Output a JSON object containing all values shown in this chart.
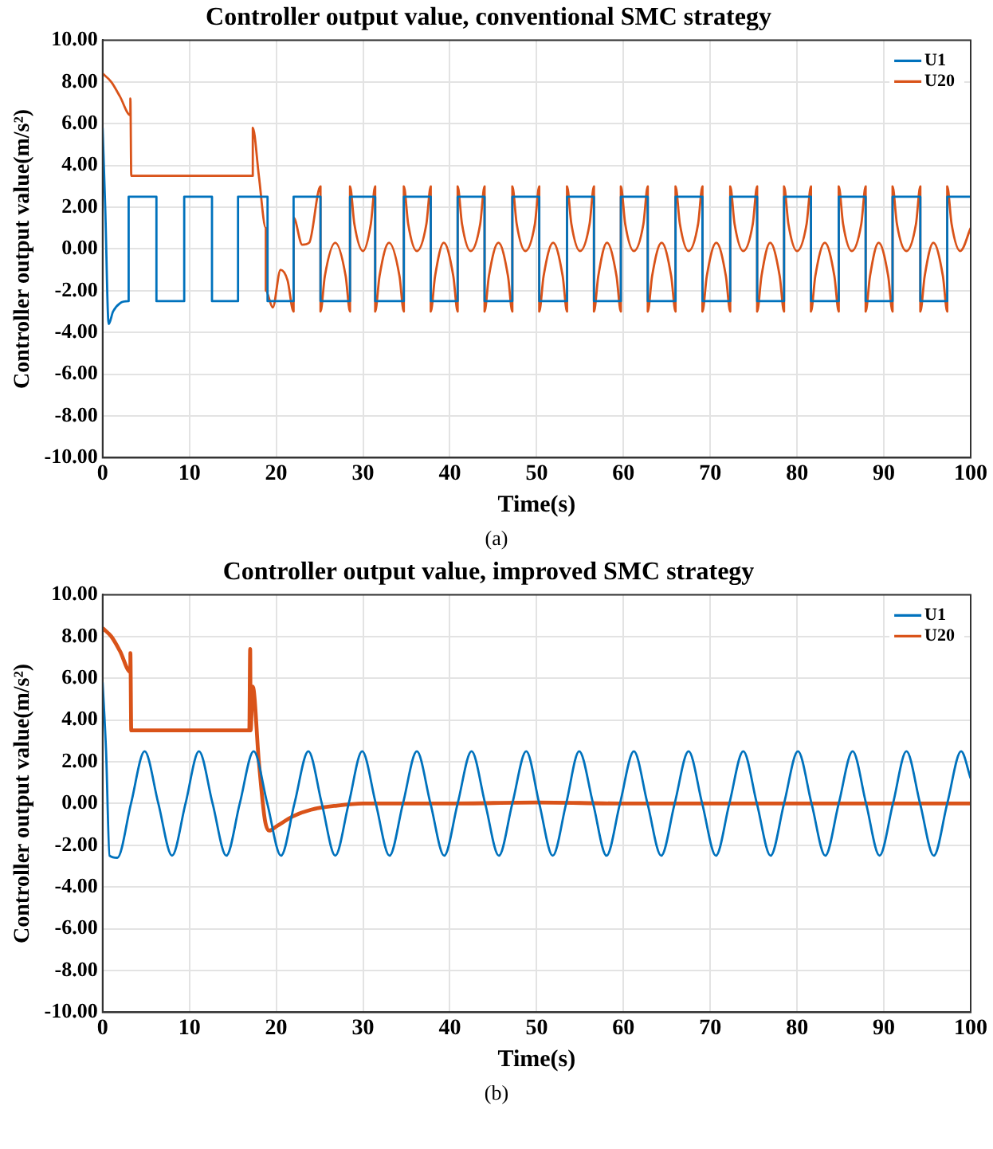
{
  "chart_data": [
    {
      "type": "line",
      "title": "Controller output value, conventional SMC strategy",
      "xlabel": "Time(s)",
      "ylabel": "Controller output value(m/s²)",
      "annotations": [
        "(a)"
      ],
      "xlim": [
        0,
        100
      ],
      "xticks": [
        0,
        10,
        20,
        30,
        40,
        50,
        60,
        70,
        80,
        90,
        100
      ],
      "ylim": [
        -10,
        10
      ],
      "yticks": [
        {
          "value": -10,
          "label": "-10.00"
        },
        {
          "value": -8,
          "label": "-8.00"
        },
        {
          "value": -6,
          "label": "-6.00"
        },
        {
          "value": -4,
          "label": "-4.00"
        },
        {
          "value": -2,
          "label": "-2.00"
        },
        {
          "value": 0,
          "label": "0.00"
        },
        {
          "value": 2,
          "label": "2.00"
        },
        {
          "value": 4,
          "label": "4.00"
        },
        {
          "value": 6,
          "label": "6.00"
        },
        {
          "value": 8,
          "label": "8.00"
        },
        {
          "value": 10,
          "label": "10.00"
        }
      ],
      "grid": true,
      "legend": "top right",
      "marker": "none",
      "line_style": "solid",
      "series": [
        {
          "name": "U1",
          "color": "#0072bd",
          "x": [
            0,
            0.3,
            0.7,
            1.2,
            2.0,
            3.0,
            3.0,
            6.2,
            6.2,
            9.4,
            9.4,
            12.6,
            12.6,
            15.6,
            15.6,
            19.0,
            19.0,
            22.0,
            22.0,
            25.1,
            25.1,
            28.5,
            28.5,
            31.4,
            31.4,
            34.7,
            34.7,
            37.8,
            37.8,
            40.9,
            40.9,
            44.0,
            44.0,
            47.2,
            47.2,
            50.3,
            50.3,
            53.5,
            53.5,
            56.6,
            56.6,
            59.7,
            59.7,
            62.8,
            62.8,
            66.0,
            66.0,
            69.1,
            69.1,
            72.3,
            72.3,
            75.4,
            75.4,
            78.5,
            78.5,
            81.6,
            81.6,
            84.8,
            84.8,
            87.9,
            87.9,
            91.0,
            91.0,
            94.2,
            94.2,
            97.3,
            97.3,
            100
          ],
          "values": [
            5.8,
            2.0,
            -3.6,
            -3.0,
            -2.6,
            -2.5,
            2.5,
            2.5,
            -2.5,
            -2.5,
            2.5,
            2.5,
            -2.5,
            -2.5,
            2.5,
            2.5,
            -2.5,
            -2.5,
            2.5,
            2.5,
            -2.5,
            -2.5,
            2.5,
            2.5,
            -2.5,
            -2.5,
            2.5,
            2.5,
            -2.5,
            -2.5,
            2.5,
            2.5,
            -2.5,
            -2.5,
            2.5,
            2.5,
            -2.5,
            -2.5,
            2.5,
            2.5,
            -2.5,
            -2.5,
            2.5,
            2.5,
            -2.5,
            -2.5,
            2.5,
            2.5,
            -2.5,
            -2.5,
            2.5,
            2.5,
            -2.5,
            -2.5,
            2.5,
            2.5,
            -2.5,
            -2.5,
            2.5,
            2.5,
            -2.5,
            -2.5,
            2.5,
            2.5,
            -2.5,
            -2.5,
            2.5,
            2.5
          ]
        },
        {
          "name": "U20",
          "color": "#d95319",
          "x": [
            0,
            1,
            2,
            3.2,
            3.2,
            3.3,
            17.3,
            17.3,
            18.0,
            18.8,
            18.8,
            19.6,
            20.5,
            21.3,
            22.0,
            22.0,
            23.0,
            23.8,
            25.1,
            25.1,
            25.6,
            26.8,
            28.0,
            28.5,
            28.5,
            29.0,
            30.0,
            30.9,
            31.4,
            31.4,
            31.9,
            33.0,
            34.2,
            34.7,
            34.7,
            35.2,
            36.2,
            37.3,
            37.8,
            37.8,
            38.3,
            39.3,
            40.4,
            40.9,
            40.9,
            41.4,
            42.4,
            43.5,
            44.0,
            44.0,
            44.5,
            45.6,
            46.7,
            47.2,
            47.2,
            47.7,
            48.7,
            49.8,
            50.3,
            50.3,
            50.8,
            51.9,
            53.0,
            53.5,
            53.5,
            54.0,
            55.0,
            56.1,
            56.6,
            56.6,
            57.1,
            58.1,
            59.2,
            59.7,
            59.7,
            60.2,
            61.2,
            62.3,
            62.8,
            62.8,
            63.3,
            64.4,
            65.5,
            66.0,
            66.0,
            66.5,
            67.5,
            68.6,
            69.1,
            69.1,
            69.6,
            70.7,
            71.8,
            72.3,
            72.3,
            72.8,
            73.8,
            74.9,
            75.4,
            75.4,
            75.9,
            76.9,
            78.0,
            78.5,
            78.5,
            79.0,
            80.0,
            81.1,
            81.6,
            81.6,
            82.1,
            83.2,
            84.3,
            84.8,
            84.8,
            85.3,
            86.3,
            87.4,
            87.9,
            87.9,
            88.4,
            89.4,
            90.5,
            91.0,
            91.0,
            91.5,
            92.6,
            93.7,
            94.2,
            94.2,
            94.7,
            95.7,
            96.8,
            97.3,
            97.3,
            97.8,
            98.8,
            100
          ],
          "values": [
            8.4,
            8.0,
            7.3,
            6.4,
            7.2,
            3.5,
            3.5,
            5.8,
            3.5,
            1.0,
            -2.0,
            -2.8,
            -1.0,
            -1.5,
            -3.0,
            1.5,
            0.2,
            0.3,
            3.0,
            -3.0,
            -1.3,
            0.3,
            -1.3,
            -3.0,
            3.0,
            1.2,
            -0.1,
            1.2,
            3.0,
            -3.0,
            -1.3,
            0.3,
            -1.3,
            -3.0,
            3.0,
            1.2,
            -0.1,
            1.2,
            3.0,
            -3.0,
            -1.3,
            0.3,
            -1.3,
            -3.0,
            3.0,
            1.2,
            -0.1,
            1.2,
            3.0,
            -3.0,
            -1.3,
            0.3,
            -1.3,
            -3.0,
            3.0,
            1.2,
            -0.1,
            1.2,
            3.0,
            -3.0,
            -1.3,
            0.3,
            -1.3,
            -3.0,
            3.0,
            1.2,
            -0.1,
            1.2,
            3.0,
            -3.0,
            -1.3,
            0.3,
            -1.3,
            -3.0,
            3.0,
            1.2,
            -0.1,
            1.2,
            3.0,
            -3.0,
            -1.3,
            0.3,
            -1.3,
            -3.0,
            3.0,
            1.2,
            -0.1,
            1.2,
            3.0,
            -3.0,
            -1.3,
            0.3,
            -1.3,
            -3.0,
            3.0,
            1.2,
            -0.1,
            1.2,
            3.0,
            -3.0,
            -1.3,
            0.3,
            -1.3,
            -3.0,
            3.0,
            1.2,
            -0.1,
            1.2,
            3.0,
            -3.0,
            -1.3,
            0.3,
            -1.3,
            -3.0,
            3.0,
            1.2,
            -0.1,
            1.2,
            3.0,
            -3.0,
            -1.3,
            0.3,
            -1.3,
            -3.0,
            3.0,
            1.2,
            -0.1,
            1.2,
            3.0,
            -3.0,
            -1.3,
            0.3,
            -1.3,
            -3.0,
            3.0,
            1.2,
            -0.1,
            1.0
          ]
        }
      ]
    },
    {
      "type": "line",
      "title": "Controller output value, improved SMC strategy",
      "xlabel": "Time(s)",
      "ylabel": "Controller output value(m/s²)",
      "annotations": [
        "(b)"
      ],
      "xlim": [
        0,
        100
      ],
      "xticks": [
        0,
        10,
        20,
        30,
        40,
        50,
        60,
        70,
        80,
        90,
        100
      ],
      "ylim": [
        -10,
        10
      ],
      "yticks": [
        {
          "value": -10,
          "label": "-10.00"
        },
        {
          "value": -8,
          "label": "-8.00"
        },
        {
          "value": -6,
          "label": "-6.00"
        },
        {
          "value": -4,
          "label": "-4.00"
        },
        {
          "value": -2,
          "label": "-2.00"
        },
        {
          "value": 0,
          "label": "0.00"
        },
        {
          "value": 2,
          "label": "2.00"
        },
        {
          "value": 4,
          "label": "4.00"
        },
        {
          "value": 6,
          "label": "6.00"
        },
        {
          "value": 8,
          "label": "8.00"
        },
        {
          "value": 10,
          "label": "10.00"
        }
      ],
      "grid": true,
      "legend": "top right",
      "marker": "none",
      "line_style": "solid",
      "series": [
        {
          "name": "U1",
          "color": "#0072bd",
          "x": [
            0,
            0.4,
            0.8,
            1.7,
            3.27,
            4.84,
            6.42,
            8.0,
            9.55,
            11.1,
            12.67,
            14.25,
            15.8,
            17.4,
            18.97,
            20.55,
            22.1,
            23.7,
            25.25,
            26.8,
            28.35,
            29.9,
            31.47,
            33.05,
            34.6,
            36.2,
            37.77,
            39.35,
            40.9,
            42.5,
            44.07,
            45.65,
            47.2,
            48.8,
            50.3,
            51.85,
            53.4,
            54.9,
            56.5,
            58.05,
            59.6,
            61.2,
            62.77,
            64.35,
            65.9,
            67.5,
            69.07,
            70.65,
            72.2,
            73.8,
            75.37,
            76.95,
            78.5,
            80.1,
            81.67,
            83.25,
            84.8,
            86.4,
            87.95,
            89.5,
            91.05,
            92.6,
            94.17,
            95.75,
            97.3,
            98.9,
            100
          ],
          "values": [
            5.8,
            2.5,
            -2.5,
            -2.6,
            0,
            2.5,
            0,
            -2.5,
            0,
            2.5,
            0,
            -2.5,
            0,
            2.5,
            0,
            -2.5,
            0,
            2.5,
            0,
            -2.5,
            0,
            2.5,
            0,
            -2.5,
            0,
            2.5,
            0,
            -2.5,
            0,
            2.5,
            0,
            -2.5,
            0,
            2.5,
            0,
            -2.5,
            0,
            2.5,
            0,
            -2.5,
            0,
            2.5,
            0,
            -2.5,
            0,
            2.5,
            0,
            -2.5,
            0,
            2.5,
            0,
            -2.5,
            0,
            2.5,
            0,
            -2.5,
            0,
            2.5,
            0,
            -2.5,
            0,
            2.5,
            0,
            -2.5,
            0,
            2.5,
            1.2
          ]
        },
        {
          "name": "U20",
          "color": "#d95319",
          "x": [
            0,
            1,
            2,
            3.2,
            3.2,
            3.3,
            16.9,
            17.0,
            17.05,
            17.3,
            18.0,
            18.7,
            19.2,
            20.0,
            22.0,
            24.0,
            27.0,
            30.0,
            40,
            50,
            60,
            70,
            80,
            90,
            100
          ],
          "values": [
            8.4,
            8.0,
            7.3,
            6.3,
            7.2,
            3.5,
            3.5,
            7.4,
            3.5,
            5.6,
            2.0,
            -0.8,
            -1.3,
            -1.1,
            -0.6,
            -0.3,
            -0.1,
            0.0,
            0.0,
            0.05,
            0.0,
            0.0,
            0.0,
            0.0,
            0.0
          ]
        }
      ]
    }
  ]
}
